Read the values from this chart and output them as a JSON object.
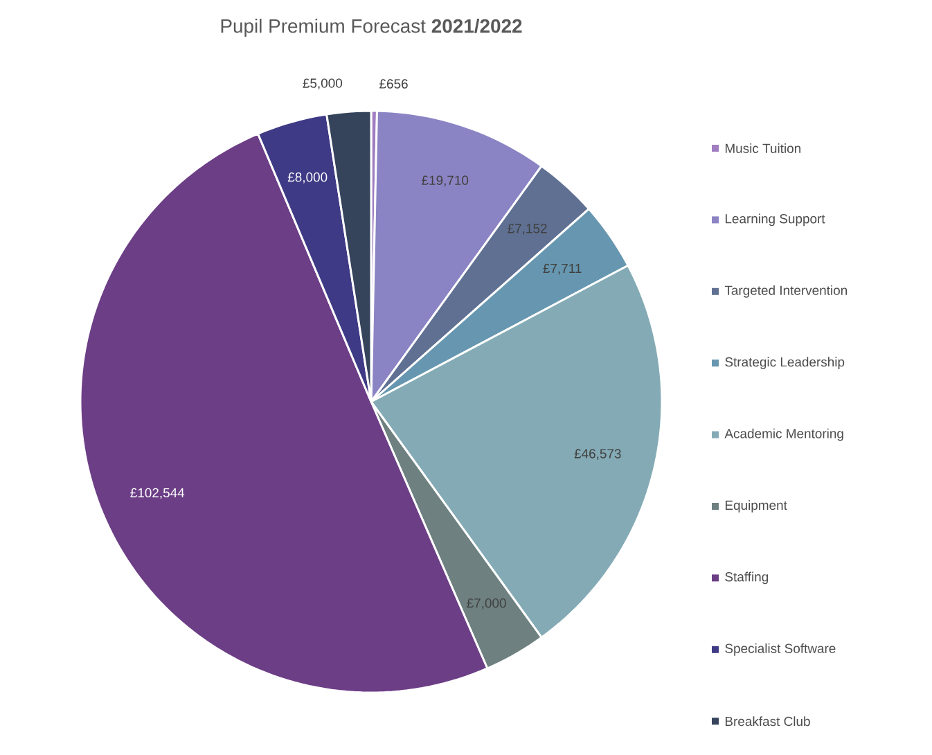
{
  "chart_data": {
    "type": "pie",
    "title": "Pupil Premium Forecast **2021/2022**",
    "categories": [
      "Music Tuition",
      "Learning Support",
      "Targeted Intervention",
      "Strategic Leadership",
      "Academic Mentoring",
      "Equipment",
      "Staffing",
      "Specialist Software",
      "Breakfast Club"
    ],
    "values": [
      656,
      19710,
      7152,
      7711,
      46573,
      7000,
      102544,
      8000,
      5000
    ],
    "value_labels": [
      "£656",
      "£19,710",
      "£7,152",
      "£7,711",
      "£46,573",
      "£7,000",
      "£102,544",
      "£8,000",
      "£5,000"
    ],
    "colors": [
      "#a07cc0",
      "#8a84c4",
      "#5f7092",
      "#6797b0",
      "#84abb5",
      "#6e8080",
      "#6c3e86",
      "#3f3a85",
      "#35435b"
    ],
    "legend": "right"
  }
}
